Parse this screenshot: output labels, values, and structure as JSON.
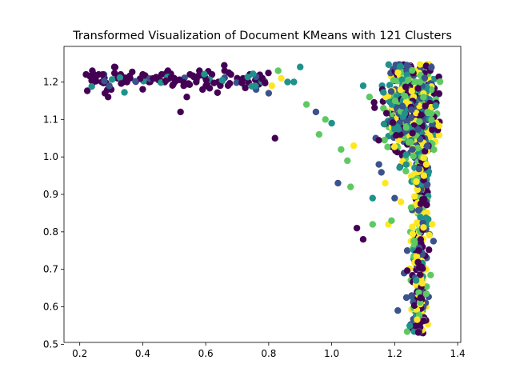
{
  "chart_data": {
    "type": "scatter",
    "title": "Transformed Visualization of Document KMeans with 121 Clusters",
    "xlabel": "",
    "ylabel": "",
    "xlim": [
      0.15,
      1.41
    ],
    "ylim": [
      0.505,
      1.295
    ],
    "x_ticks": [
      0.2,
      0.4,
      0.6,
      0.8,
      1.0,
      1.2,
      1.4
    ],
    "x_tick_labels": [
      "0.2",
      "0.4",
      "0.6",
      "0.8",
      "1.0",
      "1.2",
      "1.4"
    ],
    "y_ticks": [
      0.5,
      0.6,
      0.7,
      0.8,
      0.9,
      1.0,
      1.1,
      1.2
    ],
    "y_tick_labels": [
      "0.5",
      "0.6",
      "0.7",
      "0.8",
      "0.9",
      "1.0",
      "1.1",
      "1.2"
    ],
    "grid": false,
    "legend": "none",
    "colormap": "viridis",
    "colors": [
      "#440154",
      "#3b528b",
      "#21918c",
      "#5ec962",
      "#fde725"
    ],
    "point_count": 1200,
    "points": [
      [
        0.22,
        1.22,
        0
      ],
      [
        0.24,
        1.23,
        0
      ],
      [
        0.25,
        1.21,
        0
      ],
      [
        0.26,
        1.22,
        0
      ],
      [
        0.27,
        1.2,
        0
      ],
      [
        0.28,
        1.17,
        0
      ],
      [
        0.29,
        1.16,
        0
      ],
      [
        0.3,
        1.18,
        0
      ],
      [
        0.31,
        1.24,
        0
      ],
      [
        0.32,
        1.21,
        0
      ],
      [
        0.33,
        1.22,
        0
      ],
      [
        0.35,
        1.2,
        0
      ],
      [
        0.36,
        1.21,
        0
      ],
      [
        0.4,
        1.22,
        0
      ],
      [
        0.42,
        1.2,
        0
      ],
      [
        0.44,
        1.21,
        0
      ],
      [
        0.46,
        1.22,
        0
      ],
      [
        0.47,
        1.2,
        0
      ],
      [
        0.48,
        1.23,
        0
      ],
      [
        0.5,
        1.21,
        0
      ],
      [
        0.52,
        1.12,
        0
      ],
      [
        0.53,
        1.19,
        0
      ],
      [
        0.54,
        1.16,
        0
      ],
      [
        0.55,
        1.22,
        0
      ],
      [
        0.57,
        1.2,
        0
      ],
      [
        0.58,
        1.23,
        0
      ],
      [
        0.59,
        1.18,
        0
      ],
      [
        0.6,
        1.21,
        0
      ],
      [
        0.62,
        1.22,
        0
      ],
      [
        0.64,
        1.2,
        0
      ],
      [
        0.66,
        1.23,
        0
      ],
      [
        0.68,
        1.22,
        0
      ],
      [
        0.7,
        1.21,
        0
      ],
      [
        0.72,
        1.2,
        0
      ],
      [
        0.74,
        1.22,
        0
      ],
      [
        0.76,
        1.18,
        1
      ],
      [
        0.77,
        1.2,
        2
      ],
      [
        0.78,
        1.21,
        0
      ],
      [
        0.8,
        1.17,
        1
      ],
      [
        0.81,
        1.19,
        4
      ],
      [
        0.82,
        1.05,
        0
      ],
      [
        0.83,
        1.23,
        3
      ],
      [
        0.84,
        1.21,
        4
      ],
      [
        0.86,
        1.2,
        2
      ],
      [
        0.88,
        1.2,
        2
      ],
      [
        0.9,
        1.24,
        2
      ],
      [
        0.92,
        1.14,
        3
      ],
      [
        0.95,
        1.12,
        1
      ],
      [
        0.96,
        1.06,
        3
      ],
      [
        0.98,
        1.1,
        3
      ],
      [
        1.0,
        1.09,
        2
      ],
      [
        1.02,
        0.93,
        1
      ],
      [
        1.03,
        1.02,
        3
      ],
      [
        1.05,
        0.99,
        3
      ],
      [
        1.06,
        0.92,
        3
      ],
      [
        1.07,
        1.03,
        4
      ],
      [
        1.08,
        0.81,
        0
      ],
      [
        1.1,
        0.78,
        0
      ],
      [
        1.1,
        1.19,
        2
      ],
      [
        1.12,
        1.16,
        3
      ],
      [
        1.13,
        0.82,
        3
      ],
      [
        1.13,
        0.89,
        2
      ],
      [
        1.14,
        1.05,
        1
      ],
      [
        1.15,
        0.98,
        1
      ],
      [
        1.16,
        1.19,
        2
      ],
      [
        1.17,
        0.93,
        4
      ],
      [
        1.18,
        0.82,
        4
      ],
      [
        1.19,
        0.83,
        3
      ],
      [
        1.2,
        0.89,
        1
      ],
      [
        1.21,
        0.59,
        1
      ],
      [
        1.22,
        0.88,
        4
      ],
      [
        1.23,
        0.69,
        1
      ],
      [
        1.24,
        0.75,
        1
      ],
      [
        1.25,
        0.8,
        3
      ],
      [
        1.26,
        0.67,
        2
      ],
      [
        1.27,
        0.63,
        0
      ],
      [
        1.28,
        0.57,
        0
      ],
      [
        1.29,
        0.53,
        0
      ],
      [
        1.3,
        0.6,
        4
      ],
      [
        1.3,
        0.7,
        4
      ]
    ]
  }
}
